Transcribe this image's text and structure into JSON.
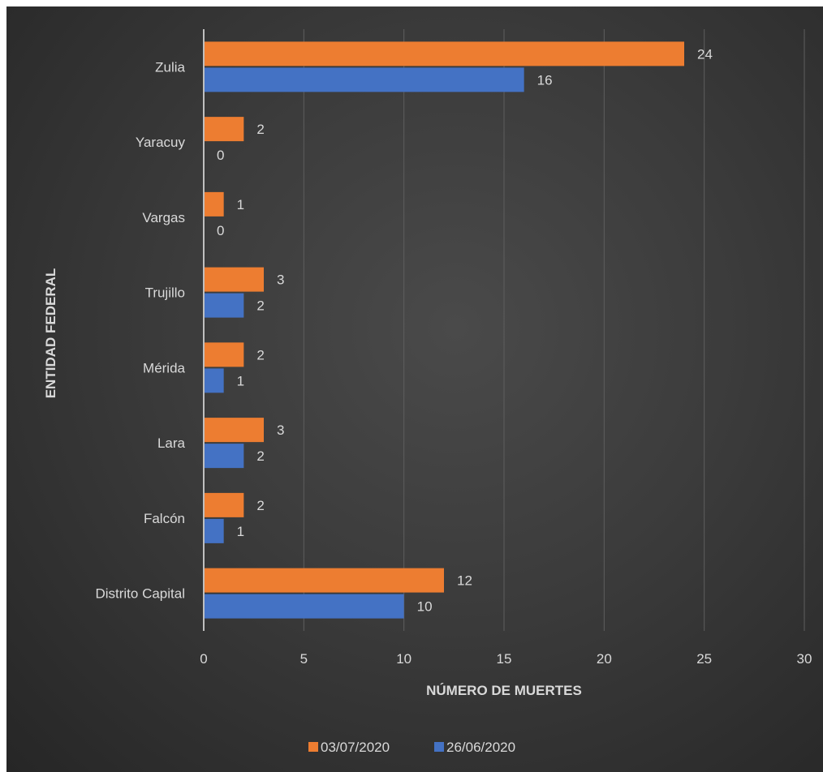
{
  "chart_data": {
    "type": "bar",
    "orientation": "horizontal",
    "categories": [
      "Zulia",
      "Yaracuy",
      "Vargas",
      "Trujillo",
      "Mérida",
      "Lara",
      "Falcón",
      "Distrito Capital"
    ],
    "series": [
      {
        "name": "03/07/2020",
        "color": "#ed7d31",
        "values": [
          24,
          2,
          1,
          3,
          2,
          3,
          2,
          12
        ]
      },
      {
        "name": "26/06/2020",
        "color": "#4472c4",
        "values": [
          16,
          0,
          0,
          2,
          1,
          2,
          1,
          10
        ]
      }
    ],
    "xlabel": "NÚMERO DE MUERTES",
    "ylabel": "ENTIDAD FEDERAL",
    "xlim": [
      0,
      30
    ],
    "xticks": [
      0,
      5,
      10,
      15,
      20,
      25,
      30
    ],
    "grid": "vertical",
    "legend_position": "bottom",
    "data_labels": true
  }
}
